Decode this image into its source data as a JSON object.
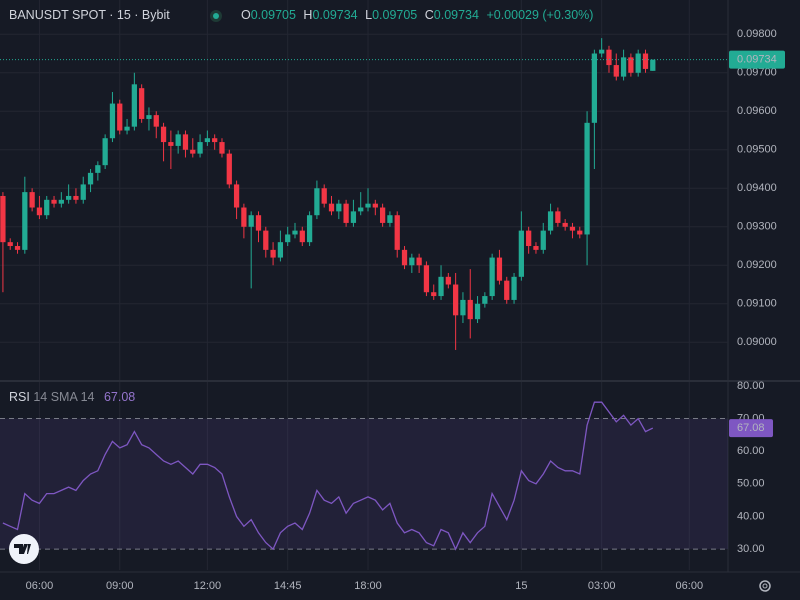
{
  "chart_data": [
    {
      "type": "candlestick",
      "title": "BANUSDT SPOT · 15 · Bybit",
      "ohlc_labels": [
        "O",
        "H",
        "L",
        "C"
      ],
      "change": "+0.00029 (+0.30%)",
      "up_color": "#22ab94",
      "down_color": "#f23645",
      "xlim": [
        -0.4,
        99.3
      ],
      "xticks": [
        {
          "value": 5,
          "label": "06:00"
        },
        {
          "value": 16,
          "label": "09:00"
        },
        {
          "value": 28,
          "label": "12:00"
        },
        {
          "value": 39,
          "label": "14:45"
        },
        {
          "value": 50,
          "label": "18:00"
        },
        {
          "value": 71,
          "label": "15"
        },
        {
          "value": 82,
          "label": "03:00"
        },
        {
          "value": 94,
          "label": "06:00"
        }
      ],
      "ylim": [
        0.08902,
        0.09889
      ],
      "yticks": [
        {
          "value": 0.09,
          "label": "0.09000"
        },
        {
          "value": 0.091,
          "label": "0.09100"
        },
        {
          "value": 0.092,
          "label": "0.09200"
        },
        {
          "value": 0.093,
          "label": "0.09300"
        },
        {
          "value": 0.094,
          "label": "0.09400"
        },
        {
          "value": 0.095,
          "label": "0.09500"
        },
        {
          "value": 0.096,
          "label": "0.09600"
        },
        {
          "value": 0.097,
          "label": "0.09700"
        },
        {
          "value": 0.098,
          "label": "0.09800"
        }
      ],
      "grid": true,
      "open": [
        0.0938,
        0.0926,
        0.0925,
        0.0924,
        0.0939,
        0.0935,
        0.0933,
        0.0937,
        0.0936,
        0.0937,
        0.0938,
        0.0937,
        0.0941,
        0.0944,
        0.0946,
        0.0953,
        0.0962,
        0.0955,
        0.0956,
        0.0966,
        0.0958,
        0.0959,
        0.0956,
        0.0952,
        0.0951,
        0.0954,
        0.095,
        0.0949,
        0.0952,
        0.0953,
        0.0952,
        0.0949,
        0.0941,
        0.0935,
        0.093,
        0.0933,
        0.0929,
        0.0924,
        0.0922,
        0.0926,
        0.0928,
        0.0929,
        0.0926,
        0.0933,
        0.094,
        0.0936,
        0.0934,
        0.0936,
        0.0931,
        0.0934,
        0.0935,
        0.0936,
        0.0935,
        0.0931,
        0.0933,
        0.0924,
        0.092,
        0.0922,
        0.092,
        0.0913,
        0.0912,
        0.0917,
        0.0915,
        0.0907,
        0.0911,
        0.0906,
        0.091,
        0.0912,
        0.0922,
        0.0916,
        0.0911,
        0.0917,
        0.0929,
        0.0925,
        0.0924,
        0.0929,
        0.0934,
        0.0931,
        0.093,
        0.0929,
        0.0928,
        0.0957,
        0.0975,
        0.0976,
        0.0972,
        0.0969,
        0.0974,
        0.097,
        0.0975,
        0.09705
      ],
      "high": [
        0.0939,
        0.0927,
        0.0926,
        0.0943,
        0.094,
        0.0938,
        0.0938,
        0.0938,
        0.0939,
        0.0941,
        0.094,
        0.0943,
        0.0945,
        0.0947,
        0.0954,
        0.0965,
        0.0963,
        0.0958,
        0.097,
        0.0967,
        0.0961,
        0.096,
        0.0957,
        0.0955,
        0.0955,
        0.0955,
        0.0953,
        0.0954,
        0.0955,
        0.0954,
        0.0953,
        0.095,
        0.0942,
        0.0936,
        0.0934,
        0.0934,
        0.093,
        0.0926,
        0.0929,
        0.093,
        0.0931,
        0.093,
        0.0934,
        0.0942,
        0.0941,
        0.0938,
        0.0937,
        0.0937,
        0.0937,
        0.0939,
        0.094,
        0.0937,
        0.0936,
        0.0934,
        0.0934,
        0.0925,
        0.0923,
        0.0923,
        0.0921,
        0.0915,
        0.092,
        0.0918,
        0.0918,
        0.0913,
        0.0919,
        0.0912,
        0.0913,
        0.0923,
        0.0924,
        0.0917,
        0.0918,
        0.0934,
        0.093,
        0.0926,
        0.0931,
        0.0936,
        0.0935,
        0.0932,
        0.0931,
        0.093,
        0.096,
        0.0976,
        0.0979,
        0.0977,
        0.0975,
        0.0976,
        0.0975,
        0.0976,
        0.0976,
        0.09734
      ],
      "low": [
        0.0913,
        0.0924,
        0.0923,
        0.0923,
        0.0934,
        0.0932,
        0.0932,
        0.0935,
        0.0935,
        0.0936,
        0.0936,
        0.0936,
        0.0939,
        0.0942,
        0.0945,
        0.0952,
        0.0954,
        0.0954,
        0.0955,
        0.0957,
        0.0955,
        0.0953,
        0.0947,
        0.0945,
        0.0949,
        0.0948,
        0.0948,
        0.0948,
        0.0951,
        0.095,
        0.0948,
        0.094,
        0.0932,
        0.0927,
        0.0914,
        0.0926,
        0.0922,
        0.092,
        0.0921,
        0.0925,
        0.0927,
        0.0925,
        0.0925,
        0.0932,
        0.0935,
        0.0933,
        0.0932,
        0.093,
        0.093,
        0.0933,
        0.0934,
        0.0933,
        0.093,
        0.093,
        0.0922,
        0.0919,
        0.0918,
        0.0918,
        0.0912,
        0.0911,
        0.0911,
        0.0914,
        0.0898,
        0.0905,
        0.0901,
        0.0905,
        0.0909,
        0.0911,
        0.0915,
        0.091,
        0.091,
        0.0916,
        0.0923,
        0.0923,
        0.0923,
        0.0928,
        0.093,
        0.0929,
        0.0927,
        0.0927,
        0.092,
        0.0945,
        0.0974,
        0.097,
        0.0968,
        0.0968,
        0.0969,
        0.0969,
        0.097,
        0.09705
      ],
      "close": [
        0.0926,
        0.0925,
        0.0924,
        0.0939,
        0.0935,
        0.0933,
        0.0937,
        0.0936,
        0.0937,
        0.0938,
        0.0937,
        0.0941,
        0.0944,
        0.0946,
        0.0953,
        0.0962,
        0.0955,
        0.0956,
        0.0967,
        0.0958,
        0.0959,
        0.0956,
        0.0952,
        0.0951,
        0.0954,
        0.095,
        0.0949,
        0.0952,
        0.0953,
        0.0952,
        0.0949,
        0.0941,
        0.0935,
        0.093,
        0.0933,
        0.0929,
        0.0924,
        0.0922,
        0.0926,
        0.0928,
        0.0929,
        0.0926,
        0.0933,
        0.094,
        0.0936,
        0.0934,
        0.0936,
        0.0931,
        0.0934,
        0.0935,
        0.0936,
        0.0935,
        0.0931,
        0.0933,
        0.0924,
        0.092,
        0.0922,
        0.092,
        0.0913,
        0.0912,
        0.0917,
        0.0915,
        0.0907,
        0.0911,
        0.0906,
        0.091,
        0.0912,
        0.0922,
        0.0916,
        0.0911,
        0.0917,
        0.0929,
        0.0925,
        0.0924,
        0.0929,
        0.0934,
        0.0931,
        0.093,
        0.0929,
        0.0928,
        0.0957,
        0.0975,
        0.0976,
        0.0972,
        0.0969,
        0.0974,
        0.097,
        0.0975,
        0.0971,
        0.09734
      ]
    },
    {
      "type": "line",
      "title": "RSI",
      "subtitle": "14 SMA 14",
      "color": "#7e57c2",
      "band_color": "rgba(126,87,194,0.12)",
      "bands": [
        30,
        70
      ],
      "ylim": [
        23.6,
        81.2
      ],
      "yticks": [
        {
          "value": 30,
          "label": "30.00"
        },
        {
          "value": 40,
          "label": "40.00"
        },
        {
          "value": 50,
          "label": "50.00"
        },
        {
          "value": 60,
          "label": "60.00"
        },
        {
          "value": 70,
          "label": "70.00"
        },
        {
          "value": 80,
          "label": "80.00"
        }
      ],
      "values": [
        38,
        37,
        36,
        47,
        45,
        44,
        47,
        47,
        48,
        49,
        48,
        51,
        53,
        54,
        59,
        63,
        61,
        62,
        66,
        62,
        61,
        59,
        57,
        56,
        57,
        55,
        53,
        56,
        56,
        55,
        53,
        46,
        40,
        37,
        39,
        35,
        32,
        30,
        35,
        37,
        38,
        36,
        41,
        48,
        45,
        44,
        46,
        41,
        44,
        45,
        46,
        45,
        42,
        44,
        38,
        35,
        36,
        35,
        32,
        31,
        36,
        35,
        30,
        35,
        32,
        35,
        37,
        47,
        43,
        39,
        45,
        54,
        51,
        50,
        53,
        57,
        55,
        54,
        54,
        53,
        68,
        75,
        75,
        72,
        69,
        71,
        68,
        70,
        66,
        67.08
      ]
    }
  ]
}
